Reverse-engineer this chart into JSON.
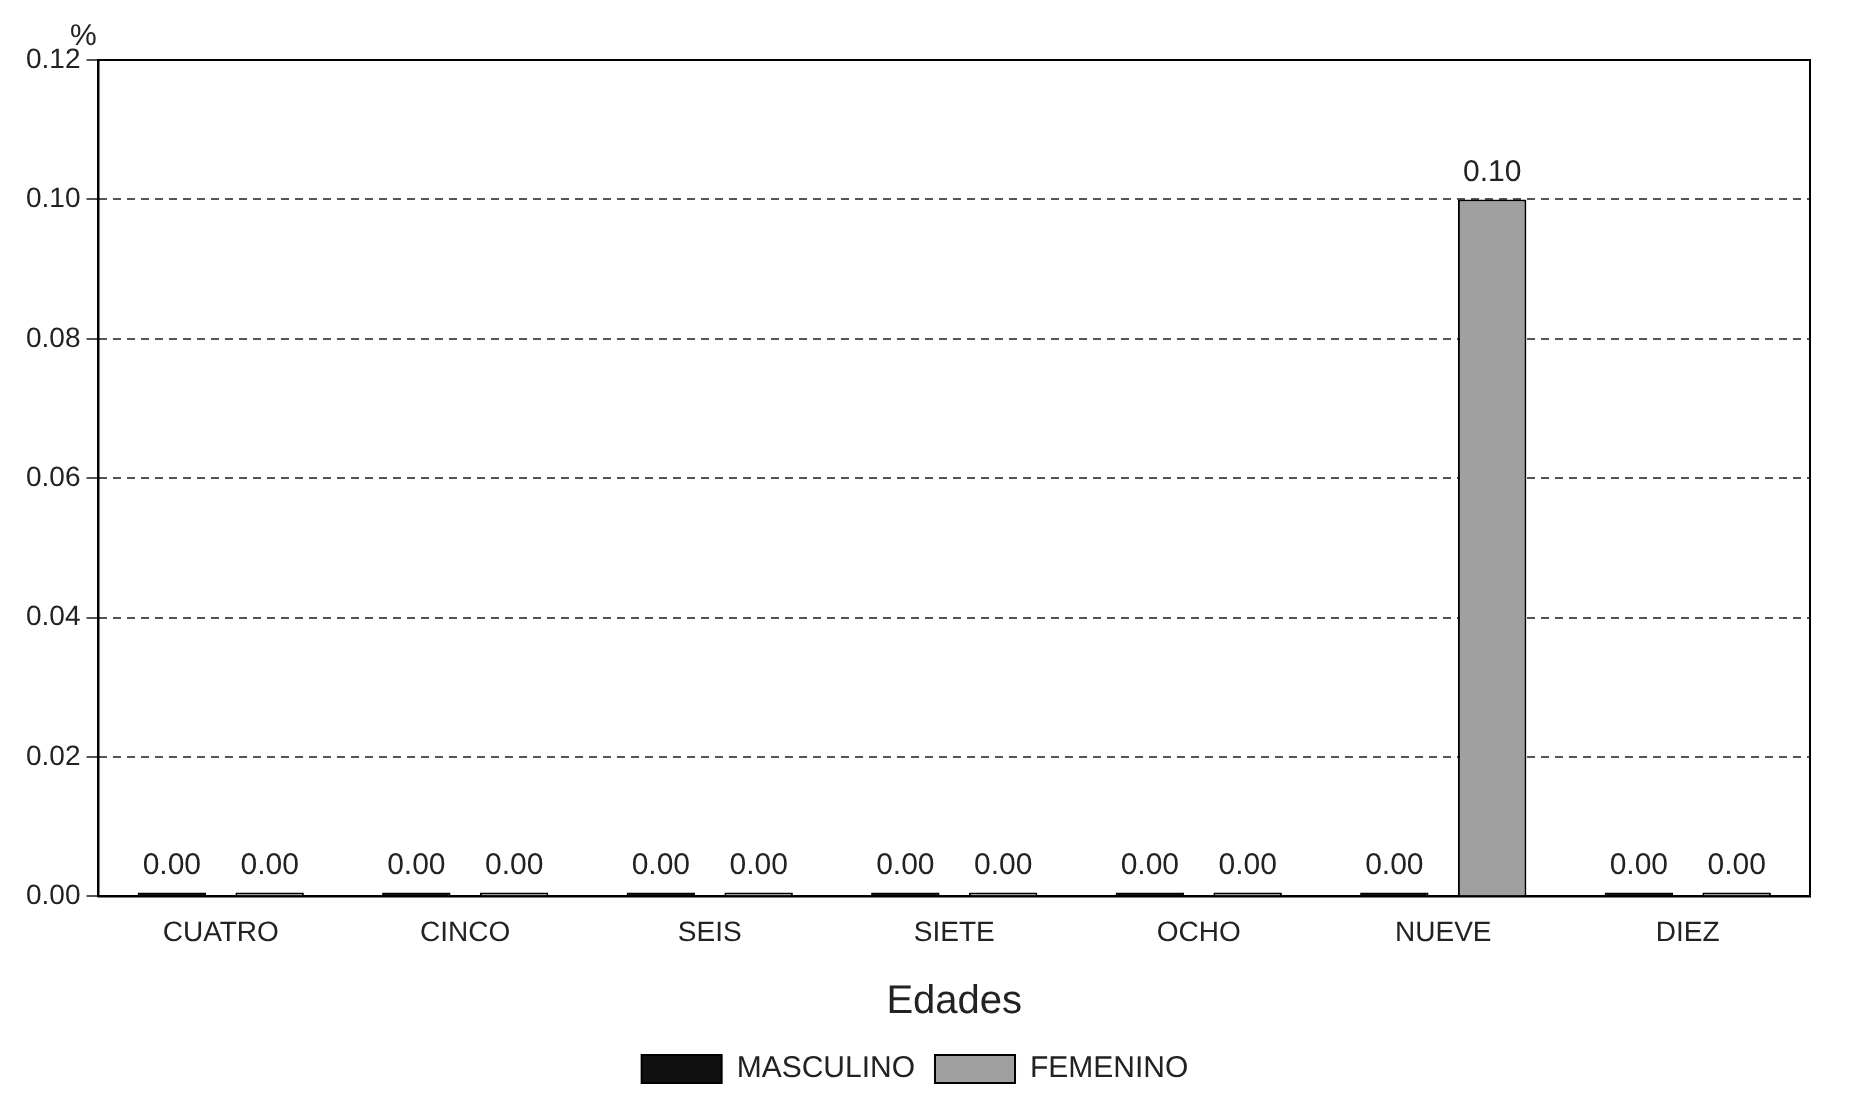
{
  "chart_data": {
    "type": "bar",
    "xlabel": "Edades",
    "ylabel": "%",
    "categories": [
      "CUATRO",
      "CINCO",
      "SEIS",
      "SIETE",
      "OCHO",
      "NUEVE",
      "DIEZ"
    ],
    "series": [
      {
        "name": "MASCULINO",
        "color": "#111111",
        "values": [
          0,
          0,
          0,
          0,
          0,
          0,
          0
        ],
        "value_labels": [
          "0.00",
          "0.00",
          "0.00",
          "0.00",
          "0.00",
          "0.00",
          "0.00"
        ]
      },
      {
        "name": "FEMENINO",
        "color": "#a0a0a0",
        "values": [
          0,
          0,
          0,
          0,
          0,
          0.1,
          0
        ],
        "value_labels": [
          "0.00",
          "0.00",
          "0.00",
          "0.00",
          "0.00",
          "0.10",
          "0.00"
        ]
      }
    ],
    "ylim": [
      0,
      0.12
    ],
    "yticks": [
      {
        "value": 0,
        "label": "0.00"
      },
      {
        "value": 0.02,
        "label": "0.02"
      },
      {
        "value": 0.04,
        "label": "0.04"
      },
      {
        "value": 0.06,
        "label": "0.06"
      },
      {
        "value": 0.08,
        "label": "0.08"
      },
      {
        "value": 0.1,
        "label": "0.10"
      },
      {
        "value": 0.12,
        "label": "0.12"
      }
    ],
    "grid": "y",
    "legend": "bottom"
  }
}
